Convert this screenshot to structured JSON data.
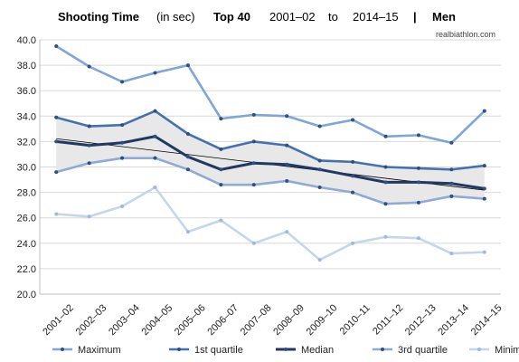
{
  "title": {
    "main": "Shooting Time",
    "unit": "(in sec)",
    "scope": "Top 40",
    "from": "2001–02",
    "to_word": "to",
    "to": "2014–15",
    "separator": "|",
    "gender": "Men"
  },
  "source": "realbiathlon.com",
  "chart_data": {
    "type": "line",
    "title": "Shooting Time (in sec) Top 40 2001–02 to 2014–15 | Men",
    "xlabel": "",
    "ylabel": "",
    "categories": [
      "2001–02",
      "2002–03",
      "2003–04",
      "2004–05",
      "2005–06",
      "2006–07",
      "2007–08",
      "2008–09",
      "2009–10",
      "2010–11",
      "2011–12",
      "2012–13",
      "2013–14",
      "2014–15"
    ],
    "ylim": [
      20.0,
      40.0
    ],
    "yticks": [
      "20.0",
      "22.0",
      "24.0",
      "26.0",
      "28.0",
      "30.0",
      "32.0",
      "34.0",
      "36.0",
      "38.0",
      "40.0"
    ],
    "grid": true,
    "legend_position": "bottom",
    "shaded_band": "between 1st quartile and 3rd quartile",
    "trendline": "linear trend of Median",
    "series": [
      {
        "name": "Maximum",
        "color": "#7ea6d6",
        "values": [
          39.5,
          37.9,
          36.7,
          37.4,
          38.0,
          33.8,
          34.1,
          34.0,
          33.2,
          33.7,
          32.4,
          32.5,
          31.9,
          34.4
        ]
      },
      {
        "name": "1st quartile",
        "color": "#4472b0",
        "values": [
          33.9,
          33.2,
          33.3,
          34.4,
          32.6,
          31.4,
          32.0,
          31.7,
          30.5,
          30.4,
          30.0,
          29.9,
          29.8,
          30.1
        ]
      },
      {
        "name": "Median",
        "color": "#1f3864",
        "values": [
          32.0,
          31.7,
          31.9,
          32.4,
          30.8,
          29.8,
          30.3,
          30.2,
          29.8,
          29.3,
          28.8,
          28.8,
          28.7,
          28.3
        ]
      },
      {
        "name": "3rd quartile",
        "color": "#8eaad6",
        "values": [
          29.6,
          30.3,
          30.7,
          30.7,
          29.8,
          28.6,
          28.6,
          28.9,
          28.4,
          28.0,
          27.1,
          27.2,
          27.7,
          27.5
        ]
      },
      {
        "name": "Minimum",
        "color": "#c5d6ec",
        "values": [
          26.3,
          26.1,
          26.9,
          28.4,
          24.9,
          25.8,
          24.0,
          24.9,
          22.7,
          24.0,
          24.5,
          24.4,
          23.2,
          23.3
        ]
      }
    ]
  }
}
